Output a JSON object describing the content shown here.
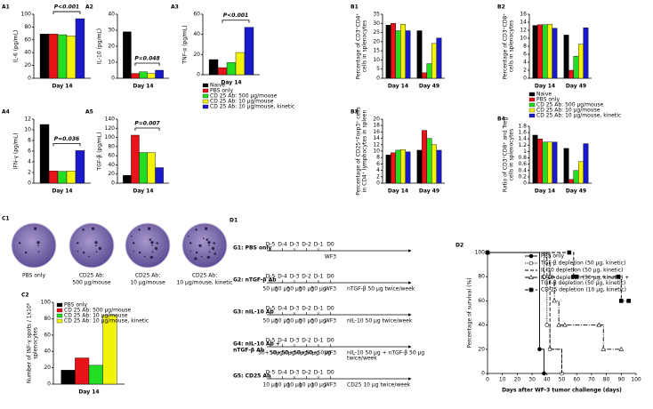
{
  "chart_data": [
    {
      "panel": "A1",
      "type": "bar",
      "ylabel": "IL-6 (pg/mL)",
      "categories": [
        "Day 14"
      ],
      "series": [
        {
          "color": "#000000",
          "values": [
            69
          ]
        },
        {
          "color": "#e8141a",
          "values": [
            69
          ]
        },
        {
          "color": "#22dd22",
          "values": [
            68
          ]
        },
        {
          "color": "#f2f20a",
          "values": [
            66
          ]
        },
        {
          "color": "#1a1acc",
          "values": [
            93
          ]
        }
      ],
      "ylim": [
        0,
        100
      ],
      "yticks": [
        0,
        20,
        40,
        60,
        80,
        100
      ],
      "annotation": "P<0.001"
    },
    {
      "panel": "A2",
      "type": "bar",
      "ylabel": "IL-10 (pg/mL)",
      "categories": [
        "Day 14"
      ],
      "series": [
        {
          "color": "#000000",
          "values": [
            29
          ]
        },
        {
          "color": "#e8141a",
          "values": [
            3
          ]
        },
        {
          "color": "#22dd22",
          "values": [
            4
          ]
        },
        {
          "color": "#f2f20a",
          "values": [
            3
          ]
        },
        {
          "color": "#1a1acc",
          "values": [
            5
          ]
        }
      ],
      "ylim": [
        0,
        40
      ],
      "yticks": [
        0,
        10,
        20,
        30,
        40
      ],
      "annotation": "P=0.048"
    },
    {
      "panel": "A3",
      "type": "bar",
      "ylabel": "TNF-α (pg/mL)",
      "categories": [
        "Day 14"
      ],
      "series": [
        {
          "name": "Naive",
          "color": "#000000",
          "values": [
            15
          ]
        },
        {
          "name": "PBS only",
          "color": "#e8141a",
          "values": [
            7
          ]
        },
        {
          "name": "CD 25 Ab: 500 μg/mouse",
          "color": "#22dd22",
          "values": [
            12
          ]
        },
        {
          "name": "CD 25 Ab: 10 μg/mouse",
          "color": "#f2f20a",
          "values": [
            22
          ]
        },
        {
          "name": "CD 25 Ab: 10 μg/mouse, kinetic",
          "color": "#1a1acc",
          "values": [
            47
          ]
        }
      ],
      "ylim": [
        0,
        60
      ],
      "yticks": [
        0,
        20,
        40,
        60
      ],
      "annotation": "P<0.001"
    },
    {
      "panel": "A4",
      "type": "bar",
      "ylabel": "IFN-γ (pg/mL)",
      "categories": [
        "Day 14"
      ],
      "series": [
        {
          "color": "#000000",
          "values": [
            11
          ]
        },
        {
          "color": "#e8141a",
          "values": [
            2.3
          ]
        },
        {
          "color": "#22dd22",
          "values": [
            2.2
          ]
        },
        {
          "color": "#f2f20a",
          "values": [
            2.3
          ]
        },
        {
          "color": "#1a1acc",
          "values": [
            6.1
          ]
        }
      ],
      "ylim": [
        0,
        12
      ],
      "yticks": [
        0,
        2,
        4,
        6,
        8,
        10,
        12
      ],
      "annotation": "P=0.036"
    },
    {
      "panel": "A5",
      "type": "bar",
      "ylabel": "TGF-β (pg/mL)",
      "categories": [
        "Day 14"
      ],
      "series": [
        {
          "color": "#000000",
          "values": [
            17
          ]
        },
        {
          "color": "#e8141a",
          "values": [
            105
          ]
        },
        {
          "color": "#22dd22",
          "values": [
            67
          ]
        },
        {
          "color": "#f2f20a",
          "values": [
            67
          ]
        },
        {
          "color": "#1a1acc",
          "values": [
            34
          ]
        }
      ],
      "ylim": [
        0,
        140
      ],
      "yticks": [
        0,
        20,
        40,
        60,
        80,
        100,
        120,
        140
      ],
      "annotation": "P=0.007"
    },
    {
      "panel": "B1",
      "type": "bar",
      "ylabel": [
        "Percentage of CD3⁺CD4⁺",
        "cells in splenocytes"
      ],
      "categories": [
        "Day 14",
        "Day 49"
      ],
      "series": [
        {
          "color": "#000000",
          "values": [
            29,
            26
          ]
        },
        {
          "color": "#e8141a",
          "values": [
            30,
            3
          ]
        },
        {
          "color": "#22dd22",
          "values": [
            26,
            8
          ]
        },
        {
          "color": "#f2f20a",
          "values": [
            29.5,
            19
          ]
        },
        {
          "color": "#1a1acc",
          "values": [
            26,
            22
          ]
        }
      ],
      "ylim": [
        0,
        35
      ],
      "yticks": [
        0,
        5,
        10,
        15,
        20,
        25,
        30,
        35
      ]
    },
    {
      "panel": "B2",
      "type": "bar",
      "ylabel": [
        "Percentage of CD3⁺CD8⁺",
        "cells in splenocytes"
      ],
      "categories": [
        "Day 14",
        "Day 49"
      ],
      "series": [
        {
          "color": "#000000",
          "values": [
            13.2,
            10.8
          ]
        },
        {
          "color": "#e8141a",
          "values": [
            13.4,
            2
          ]
        },
        {
          "color": "#22dd22",
          "values": [
            13.4,
            5.5
          ]
        },
        {
          "color": "#f2f20a",
          "values": [
            13.5,
            8.5
          ]
        },
        {
          "color": "#1a1acc",
          "values": [
            12.5,
            12.6
          ]
        }
      ],
      "ylim": [
        0,
        16
      ],
      "yticks": [
        0,
        2,
        4,
        6,
        8,
        10,
        12,
        14,
        16
      ]
    },
    {
      "panel": "B3",
      "type": "bar",
      "ylabel": [
        "Percentage of CD25⁺Foxp3⁺ cells",
        "in CD4⁺ lymphocytes in spleen"
      ],
      "categories": [
        "Day 14",
        "Day 49"
      ],
      "series": [
        {
          "color": "#000000",
          "values": [
            8.8,
            10.3
          ]
        },
        {
          "color": "#e8141a",
          "values": [
            9.5,
            16.5
          ]
        },
        {
          "color": "#22dd22",
          "values": [
            10.3,
            14
          ]
        },
        {
          "color": "#f2f20a",
          "values": [
            10.5,
            12
          ]
        },
        {
          "color": "#1a1acc",
          "values": [
            9.8,
            10.3
          ]
        }
      ],
      "ylim": [
        0,
        20
      ],
      "yticks": [
        0,
        2,
        4,
        6,
        8,
        10,
        12,
        14,
        16,
        18,
        20
      ]
    },
    {
      "panel": "B4",
      "type": "bar",
      "ylabel": [
        "Ratio of CD3⁺CD8⁺ and Treg",
        "cells in splenocytes"
      ],
      "categories": [
        "Day 14",
        "Day 49"
      ],
      "series": [
        {
          "name": "Naive",
          "color": "#000000",
          "values": [
            1.52,
            1.1
          ]
        },
        {
          "name": "PBS only",
          "color": "#e8141a",
          "values": [
            1.4,
            0.12
          ]
        },
        {
          "name": "CD 25 Ab: 500 μg/mouse",
          "color": "#22dd22",
          "values": [
            1.3,
            0.4
          ]
        },
        {
          "name": "CD 25 Ab: 10 μg/mouse",
          "color": "#f2f20a",
          "values": [
            1.3,
            0.68
          ]
        },
        {
          "name": "CD 25 Ab: 10 μg/mouse, kinetic",
          "color": "#1a1acc",
          "values": [
            1.3,
            1.25
          ]
        }
      ],
      "ylim": [
        0,
        1.8
      ],
      "yticks": [
        0,
        0.2,
        0.4,
        0.6,
        0.8,
        1,
        1.2,
        1.4,
        1.6,
        1.8
      ]
    },
    {
      "panel": "C2",
      "type": "bar",
      "ylabel": [
        "Number of INF-γ spots / 1x10⁶",
        "splenocytes"
      ],
      "categories": [
        "Day 14"
      ],
      "series": [
        {
          "name": "PBS only",
          "color": "#000000",
          "values": [
            17
          ]
        },
        {
          "name": "CD 25 Ab: 500 μg/mouse",
          "color": "#e8141a",
          "values": [
            32
          ]
        },
        {
          "name": "CD 25 Ab: 10 μg/mouse",
          "color": "#22dd22",
          "values": [
            23
          ]
        },
        {
          "name": "CD 25 Ab: 10 μg/mouse, kinetic",
          "color": "#f2f20a",
          "values": [
            84
          ]
        }
      ],
      "ylim": [
        0,
        100
      ],
      "yticks": [
        0,
        20,
        40,
        60,
        80,
        100
      ]
    },
    {
      "panel": "D2",
      "type": "line",
      "step": true,
      "xlabel": "Days after WF-3 tumor challenge (days)",
      "ylabel": "Percentage of survival (%)",
      "xlim": [
        0,
        100
      ],
      "xticks": [
        0,
        10,
        20,
        30,
        40,
        50,
        60,
        70,
        80,
        90,
        100
      ],
      "ylim": [
        0,
        100
      ],
      "yticks": [
        0,
        20,
        40,
        60,
        80,
        100
      ],
      "series": [
        {
          "name": "PBS only",
          "color": "#000000",
          "dash": "solid",
          "marker": "circle",
          "x": [
            0,
            35,
            38
          ],
          "values": [
            100,
            20,
            0
          ]
        },
        {
          "name": "TGF-β depletion (50 μg, kinetic)",
          "color": "#000000",
          "dash": "dotted",
          "marker": "circle-open",
          "x": [
            0,
            38,
            40,
            42,
            50
          ],
          "values": [
            100,
            80,
            40,
            20,
            0
          ]
        },
        {
          "name": "IL-10 depletion (50 μg, kinetic)",
          "color": "#000000",
          "dash": "dashed",
          "marker": "none",
          "x": [
            0,
            40,
            42,
            47,
            50
          ],
          "values": [
            100,
            80,
            20,
            20,
            0
          ]
        },
        {
          "name": "IL-10 depletion (50 μg, kinetic) + TGF-β depletion (50 μg, kinetic)",
          "color": "#000000",
          "dash": "dashdot",
          "marker": "triangle-open",
          "x": [
            0,
            42,
            45,
            48,
            52,
            75,
            78,
            90
          ],
          "values": [
            100,
            80,
            60,
            40,
            40,
            40,
            20,
            20
          ]
        },
        {
          "name": "CD 25 depletion (10 μg, kinetic)",
          "color": "#000000",
          "dash": "dashed",
          "marker": "square",
          "x": [
            0,
            55,
            58,
            60,
            88,
            90,
            95
          ],
          "values": [
            100,
            100,
            80,
            80,
            80,
            60,
            60
          ]
        }
      ]
    }
  ],
  "c1": {
    "panel": "C1",
    "labels": [
      "PBS only",
      [
        "CD25 Ab:",
        "500 μg/mouse"
      ],
      [
        "CD25 Ab:",
        "10 μg/mouse"
      ],
      [
        "CD25 Ab:",
        "10 μg/mouse, kinetic"
      ]
    ]
  },
  "d1": {
    "panel": "D1",
    "days": [
      "D-5",
      "D-4",
      "D-3",
      "D-2",
      "D-1",
      "D0"
    ],
    "challenge": "WF3",
    "groups": [
      {
        "label": "G1: PBS only"
      },
      {
        "label": "G2: nTGF-β Ab",
        "doses": [
          "50 μg",
          "50 μg",
          "50 μg",
          "50 μg",
          "50 μg"
        ],
        "note": "nTGF-β 50 μg twice/week"
      },
      {
        "label": "G3: nIL-10 Ab",
        "doses": [
          "50 μg",
          "50 μg",
          "50 μg",
          "50 μg",
          "50 μg"
        ],
        "note": "nIL-10 50 μg twice/week"
      },
      {
        "label": [
          "G4: nIL-10 Ab +",
          "nTGF-β Ab"
        ],
        "doses": [
          "50+50μg",
          "50+50μg",
          "50+50μg",
          "50+50μg",
          "50+50μg"
        ],
        "note": [
          "nIL-10 50 μg + nTGF-β 50 μg",
          "twice/week"
        ]
      },
      {
        "label": "G5: CD25 Ab",
        "doses": [
          "10 μg",
          "10 μg",
          "10 μg",
          "10 μg",
          "10 μg"
        ],
        "note": "CD25 10 μg twice/week"
      }
    ]
  }
}
